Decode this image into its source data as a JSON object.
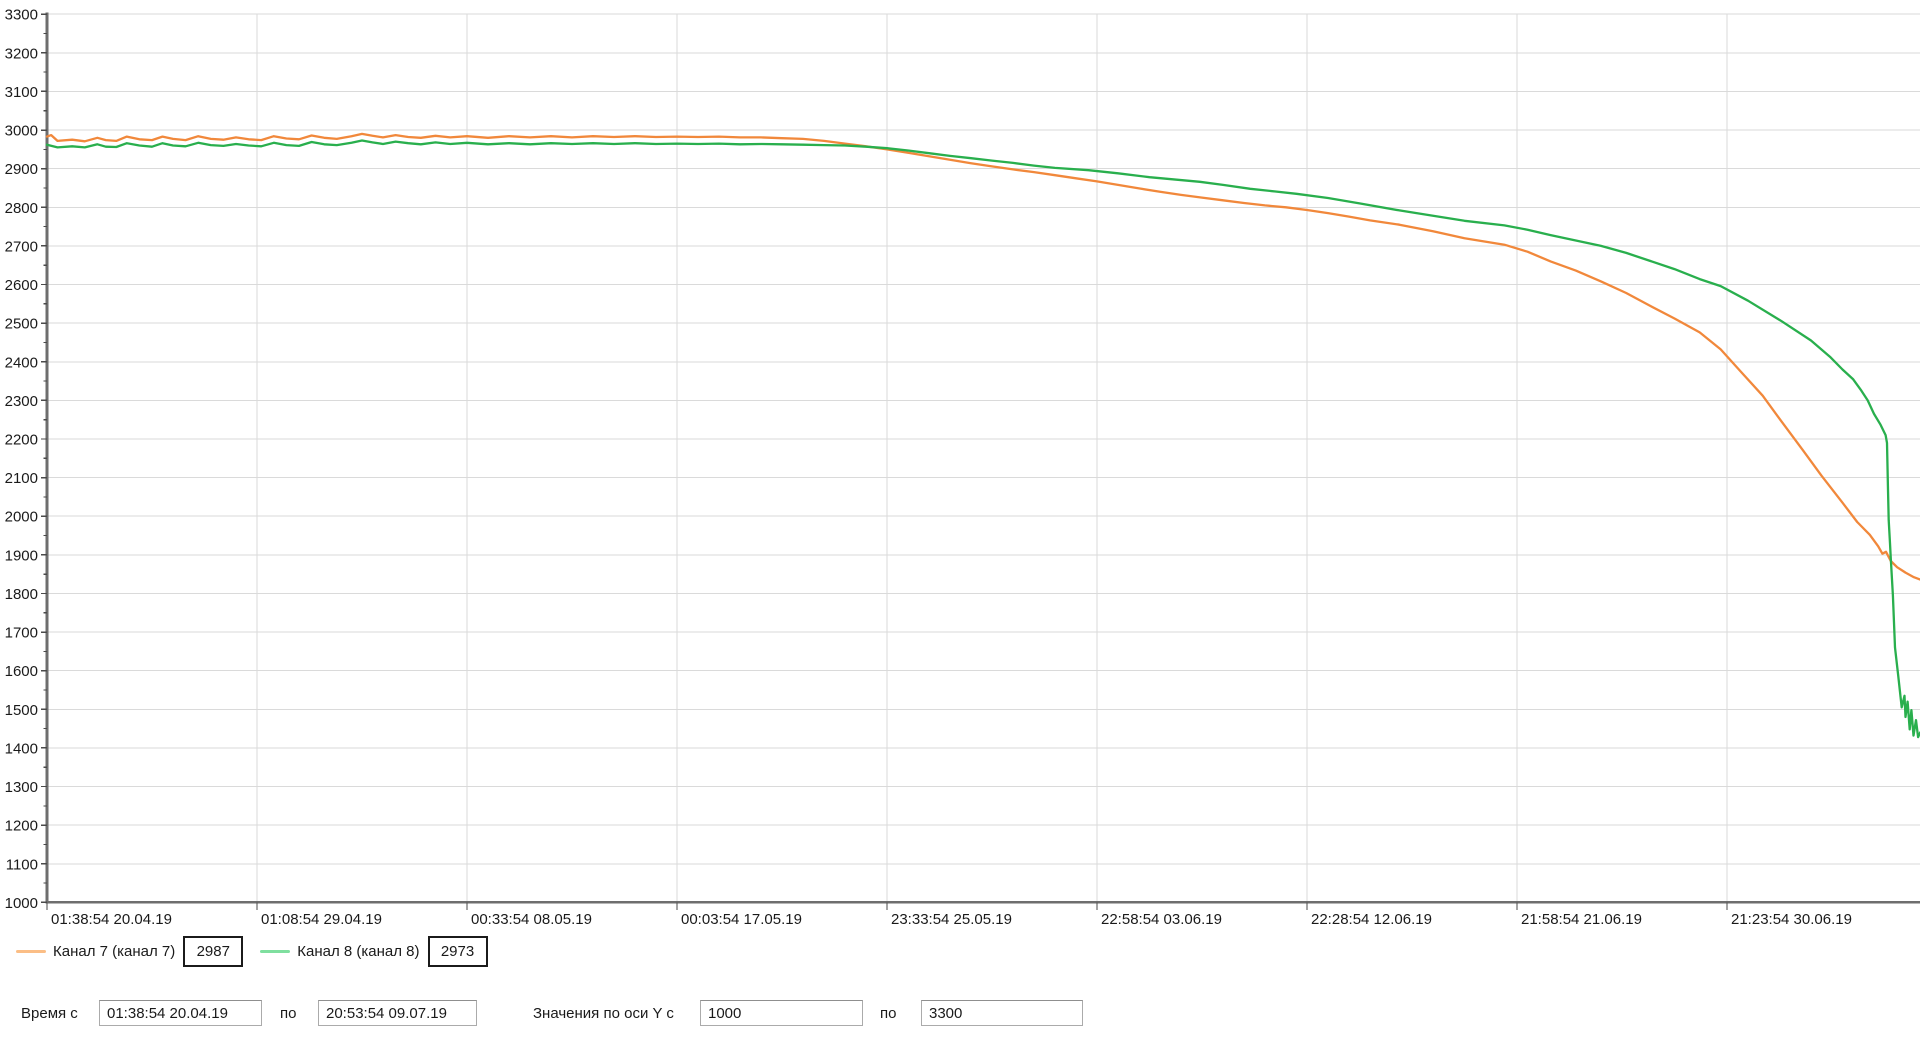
{
  "chart_data": {
    "type": "line",
    "title": "",
    "xlabel": "",
    "ylabel": "",
    "ylim": [
      1000,
      3300
    ],
    "ytick_step": 100,
    "yminor_step": 50,
    "grid": true,
    "legend_position": "bottom-left",
    "x_axis_tick_labels": [
      "01:38:54 20.04.19",
      "01:08:54 29.04.19",
      "00:33:54 08.05.19",
      "00:03:54 17.05.19",
      "23:33:54 25.05.19",
      "22:58:54 03.06.19",
      "22:28:54 12.06.19",
      "21:58:54 21.06.19",
      "21:23:54 30.06.19"
    ],
    "x_right_edge_div": 8.92,
    "series": [
      {
        "name": "Канал 7 (канал 7)",
        "value_box": "2987",
        "color": "#F1883B",
        "legend_color": "#FBBE86",
        "points_div_value": [
          [
            0,
            2983
          ],
          [
            0.02,
            2987
          ],
          [
            0.05,
            2972
          ],
          [
            0.12,
            2975
          ],
          [
            0.18,
            2971
          ],
          [
            0.24,
            2980
          ],
          [
            0.28,
            2974
          ],
          [
            0.33,
            2972
          ],
          [
            0.38,
            2983
          ],
          [
            0.44,
            2976
          ],
          [
            0.5,
            2974
          ],
          [
            0.55,
            2983
          ],
          [
            0.6,
            2977
          ],
          [
            0.66,
            2974
          ],
          [
            0.72,
            2984
          ],
          [
            0.78,
            2977
          ],
          [
            0.84,
            2975
          ],
          [
            0.9,
            2981
          ],
          [
            0.96,
            2976
          ],
          [
            1.02,
            2974
          ],
          [
            1.08,
            2984
          ],
          [
            1.14,
            2978
          ],
          [
            1.2,
            2976
          ],
          [
            1.26,
            2986
          ],
          [
            1.32,
            2980
          ],
          [
            1.38,
            2977
          ],
          [
            1.45,
            2984
          ],
          [
            1.5,
            2990
          ],
          [
            1.55,
            2985
          ],
          [
            1.6,
            2981
          ],
          [
            1.66,
            2987
          ],
          [
            1.72,
            2982
          ],
          [
            1.78,
            2980
          ],
          [
            1.85,
            2985
          ],
          [
            1.92,
            2981
          ],
          [
            2,
            2984
          ],
          [
            2.1,
            2980
          ],
          [
            2.2,
            2984
          ],
          [
            2.3,
            2981
          ],
          [
            2.4,
            2984
          ],
          [
            2.5,
            2981
          ],
          [
            2.6,
            2984
          ],
          [
            2.7,
            2982
          ],
          [
            2.8,
            2984
          ],
          [
            2.9,
            2982
          ],
          [
            3,
            2983
          ],
          [
            3.1,
            2982
          ],
          [
            3.2,
            2983
          ],
          [
            3.3,
            2981
          ],
          [
            3.4,
            2981
          ],
          [
            3.5,
            2979
          ],
          [
            3.6,
            2977
          ],
          [
            3.7,
            2972
          ],
          [
            3.8,
            2965
          ],
          [
            3.9,
            2958
          ],
          [
            4,
            2950
          ],
          [
            4.1,
            2941
          ],
          [
            4.2,
            2932
          ],
          [
            4.3,
            2923
          ],
          [
            4.4,
            2914
          ],
          [
            4.5,
            2906
          ],
          [
            4.6,
            2898
          ],
          [
            4.7,
            2891
          ],
          [
            4.8,
            2883
          ],
          [
            4.9,
            2875
          ],
          [
            5,
            2867
          ],
          [
            5.1,
            2858
          ],
          [
            5.2,
            2849
          ],
          [
            5.3,
            2840
          ],
          [
            5.4,
            2832
          ],
          [
            5.5,
            2825
          ],
          [
            5.6,
            2818
          ],
          [
            5.7,
            2811
          ],
          [
            5.8,
            2805
          ],
          [
            5.9,
            2800
          ],
          [
            6,
            2793
          ],
          [
            6.1,
            2785
          ],
          [
            6.2,
            2776
          ],
          [
            6.3,
            2766
          ],
          [
            6.44,
            2755
          ],
          [
            6.6,
            2738
          ],
          [
            6.75,
            2720
          ],
          [
            6.94,
            2703
          ],
          [
            7.05,
            2685
          ],
          [
            7.16,
            2660
          ],
          [
            7.28,
            2636
          ],
          [
            7.4,
            2608
          ],
          [
            7.52,
            2578
          ],
          [
            7.63,
            2546
          ],
          [
            7.75,
            2512
          ],
          [
            7.87,
            2476
          ],
          [
            7.97,
            2432
          ],
          [
            8.07,
            2372
          ],
          [
            8.17,
            2312
          ],
          [
            8.26,
            2245
          ],
          [
            8.36,
            2172
          ],
          [
            8.45,
            2105
          ],
          [
            8.55,
            2035
          ],
          [
            8.62,
            1985
          ],
          [
            8.68,
            1952
          ],
          [
            8.72,
            1922
          ],
          [
            8.74,
            1903
          ],
          [
            8.757,
            1908
          ],
          [
            8.78,
            1884
          ],
          [
            8.81,
            1868
          ],
          [
            8.85,
            1854
          ],
          [
            8.89,
            1842
          ],
          [
            8.92,
            1836
          ]
        ]
      },
      {
        "name": "Канал 8 (канал 8)",
        "value_box": "2973",
        "color": "#29AF4D",
        "legend_color": "#7FDF9F",
        "points_div_value": [
          [
            0,
            2962
          ],
          [
            0.05,
            2955
          ],
          [
            0.12,
            2958
          ],
          [
            0.18,
            2955
          ],
          [
            0.24,
            2963
          ],
          [
            0.28,
            2957
          ],
          [
            0.33,
            2956
          ],
          [
            0.38,
            2966
          ],
          [
            0.44,
            2960
          ],
          [
            0.5,
            2957
          ],
          [
            0.55,
            2966
          ],
          [
            0.6,
            2960
          ],
          [
            0.66,
            2958
          ],
          [
            0.72,
            2967
          ],
          [
            0.78,
            2961
          ],
          [
            0.84,
            2959
          ],
          [
            0.9,
            2964
          ],
          [
            0.96,
            2960
          ],
          [
            1.02,
            2958
          ],
          [
            1.08,
            2967
          ],
          [
            1.14,
            2961
          ],
          [
            1.2,
            2959
          ],
          [
            1.26,
            2969
          ],
          [
            1.32,
            2963
          ],
          [
            1.38,
            2961
          ],
          [
            1.45,
            2967
          ],
          [
            1.5,
            2973
          ],
          [
            1.55,
            2968
          ],
          [
            1.6,
            2964
          ],
          [
            1.66,
            2970
          ],
          [
            1.72,
            2966
          ],
          [
            1.78,
            2963
          ],
          [
            1.85,
            2968
          ],
          [
            1.92,
            2964
          ],
          [
            2,
            2967
          ],
          [
            2.1,
            2963
          ],
          [
            2.2,
            2966
          ],
          [
            2.3,
            2963
          ],
          [
            2.4,
            2966
          ],
          [
            2.5,
            2964
          ],
          [
            2.6,
            2966
          ],
          [
            2.7,
            2964
          ],
          [
            2.8,
            2966
          ],
          [
            2.9,
            2964
          ],
          [
            3,
            2965
          ],
          [
            3.1,
            2964
          ],
          [
            3.2,
            2965
          ],
          [
            3.3,
            2963
          ],
          [
            3.4,
            2964
          ],
          [
            3.5,
            2963
          ],
          [
            3.6,
            2962
          ],
          [
            3.7,
            2961
          ],
          [
            3.8,
            2960
          ],
          [
            3.9,
            2957
          ],
          [
            4,
            2953
          ],
          [
            4.1,
            2947
          ],
          [
            4.2,
            2940
          ],
          [
            4.3,
            2933
          ],
          [
            4.4,
            2927
          ],
          [
            4.5,
            2921
          ],
          [
            4.6,
            2915
          ],
          [
            4.7,
            2908
          ],
          [
            4.8,
            2902
          ],
          [
            4.96,
            2896
          ],
          [
            5.1,
            2888
          ],
          [
            5.25,
            2878
          ],
          [
            5.49,
            2866
          ],
          [
            5.6,
            2858
          ],
          [
            5.73,
            2848
          ],
          [
            5.85,
            2841
          ],
          [
            5.95,
            2835
          ],
          [
            6.1,
            2824
          ],
          [
            6.25,
            2810
          ],
          [
            6.44,
            2792
          ],
          [
            6.6,
            2778
          ],
          [
            6.75,
            2765
          ],
          [
            6.94,
            2753
          ],
          [
            7.05,
            2742
          ],
          [
            7.16,
            2728
          ],
          [
            7.28,
            2714
          ],
          [
            7.4,
            2700
          ],
          [
            7.52,
            2682
          ],
          [
            7.63,
            2662
          ],
          [
            7.75,
            2640
          ],
          [
            7.87,
            2614
          ],
          [
            7.97,
            2596
          ],
          [
            8.1,
            2558
          ],
          [
            8.26,
            2505
          ],
          [
            8.4,
            2455
          ],
          [
            8.49,
            2413
          ],
          [
            8.55,
            2380
          ],
          [
            8.6,
            2355
          ],
          [
            8.64,
            2325
          ],
          [
            8.67,
            2300
          ],
          [
            8.7,
            2265
          ],
          [
            8.73,
            2238
          ],
          [
            8.755,
            2210
          ],
          [
            8.762,
            2190
          ],
          [
            8.766,
            2080
          ],
          [
            8.77,
            1990
          ],
          [
            8.776,
            1930
          ],
          [
            8.78,
            1890
          ],
          [
            8.79,
            1795
          ],
          [
            8.8,
            1660
          ],
          [
            8.815,
            1590
          ],
          [
            8.832,
            1505
          ],
          [
            8.845,
            1535
          ],
          [
            8.85,
            1480
          ],
          [
            8.86,
            1520
          ],
          [
            8.87,
            1448
          ],
          [
            8.878,
            1498
          ],
          [
            8.888,
            1432
          ],
          [
            8.9,
            1472
          ],
          [
            8.91,
            1428
          ],
          [
            8.92,
            1440
          ]
        ]
      }
    ]
  },
  "colors": {
    "grid": "#DADADA",
    "axis": "#6E6E6E",
    "tick": "#4a4a4a",
    "text": "#1a1a1a",
    "background": "#ffffff"
  },
  "controls": {
    "time_label": "Время с",
    "time_from": "01:38:54 20.04.19",
    "to_label_1": "по",
    "time_to": "20:53:54 09.07.19",
    "y_label": "Значения по оси Y с",
    "y_from": "1000",
    "to_label_2": "по",
    "y_to": "3300"
  }
}
